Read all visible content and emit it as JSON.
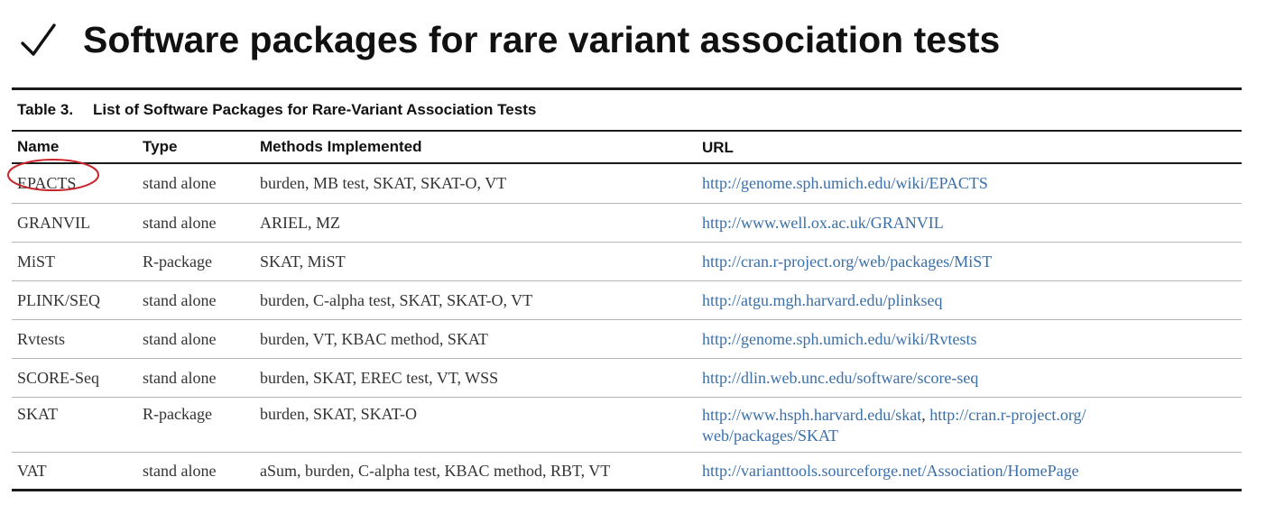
{
  "slide": {
    "check_symbol": "✓",
    "title": "Software packages for rare variant association tests"
  },
  "table": {
    "caption_number": "Table 3.",
    "caption_text": "List of Software Packages for Rare-Variant Association Tests",
    "headers": {
      "name": "Name",
      "type": "Type",
      "methods": "Methods Implemented",
      "url": "URL"
    },
    "rows": [
      {
        "name": "EPACTS",
        "type": "stand alone",
        "methods": "burden, MB test, SKAT, SKAT-O, VT",
        "url": "http://genome.sph.umich.edu/wiki/EPACTS",
        "url2": "",
        "url2b": ""
      },
      {
        "name": "GRANVIL",
        "type": "stand alone",
        "methods": "ARIEL, MZ",
        "url": "http://www.well.ox.ac.uk/GRANVIL",
        "url2": "",
        "url2b": ""
      },
      {
        "name": "MiST",
        "type": "R-package",
        "methods": "SKAT, MiST",
        "url": "http://cran.r-project.org/web/packages/MiST",
        "url2": "",
        "url2b": ""
      },
      {
        "name": "PLINK/SEQ",
        "type": "stand alone",
        "methods": "burden, C-alpha test, SKAT, SKAT-O, VT",
        "url": "http://atgu.mgh.harvard.edu/plinkseq",
        "url2": "",
        "url2b": ""
      },
      {
        "name": "Rvtests",
        "type": "stand alone",
        "methods": "burden, VT, KBAC method, SKAT",
        "url": "http://genome.sph.umich.edu/wiki/Rvtests",
        "url2": "",
        "url2b": ""
      },
      {
        "name": "SCORE-Seq",
        "type": "stand alone",
        "methods": "burden, SKAT, EREC test, VT, WSS",
        "url": "http://dlin.web.unc.edu/software/score-seq",
        "url2": "",
        "url2b": ""
      },
      {
        "name": "SKAT",
        "type": "R-package",
        "methods": "burden, SKAT, SKAT-O",
        "url": "http://www.hsph.harvard.edu/skat",
        "url2": "http://cran.r-project.org/",
        "url2b": "web/packages/SKAT"
      },
      {
        "name": "VAT",
        "type": "stand alone",
        "methods": "aSum, burden, C-alpha test, KBAC method, RBT, VT",
        "url": "http://varianttools.sourceforge.net/Association/HomePage",
        "url2": "",
        "url2b": ""
      }
    ]
  },
  "colors": {
    "url_text": "#3b6fa8",
    "highlight_circle": "#c8252c"
  }
}
